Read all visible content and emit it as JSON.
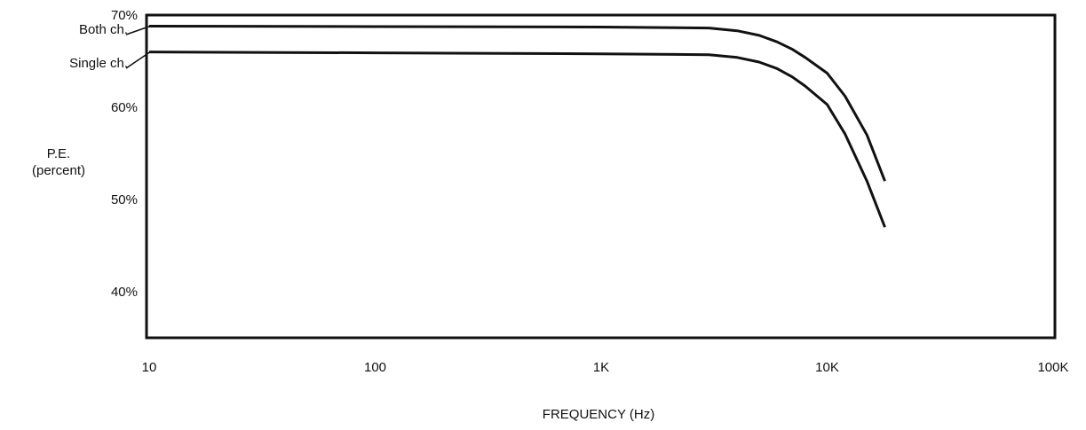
{
  "chart_data": {
    "type": "line",
    "xlabel": "FREQUENCY (Hz)",
    "ylabel_line1": "P.E.",
    "ylabel_line2": "(percent)",
    "x_scale": "log",
    "xlim": [
      10,
      100000
    ],
    "ylim": [
      35,
      70
    ],
    "x_ticks": [
      {
        "value": 10,
        "label": "10"
      },
      {
        "value": 100,
        "label": "100"
      },
      {
        "value": 1000,
        "label": "1K"
      },
      {
        "value": 10000,
        "label": "10K"
      },
      {
        "value": 100000,
        "label": "100K"
      }
    ],
    "y_ticks": [
      {
        "value": 70,
        "label": "70%"
      },
      {
        "value": 60,
        "label": "60%"
      },
      {
        "value": 50,
        "label": "50%"
      },
      {
        "value": 40,
        "label": "40%"
      }
    ],
    "grid": false,
    "series": [
      {
        "name": "Both ch.",
        "x": [
          10,
          100,
          1000,
          3000,
          4000,
          5000,
          6000,
          7000,
          8000,
          10000,
          12000,
          15000,
          18000
        ],
        "y": [
          68.8,
          68.75,
          68.7,
          68.6,
          68.3,
          67.8,
          67.1,
          66.3,
          65.4,
          63.7,
          61.2,
          57.0,
          52.0
        ]
      },
      {
        "name": "Single ch.",
        "x": [
          10,
          100,
          1000,
          3000,
          4000,
          5000,
          6000,
          7000,
          8000,
          10000,
          12000,
          15000,
          18000
        ],
        "y": [
          66.0,
          65.9,
          65.8,
          65.7,
          65.4,
          64.9,
          64.2,
          63.3,
          62.3,
          60.3,
          57.1,
          52.0,
          47.0
        ]
      }
    ]
  }
}
